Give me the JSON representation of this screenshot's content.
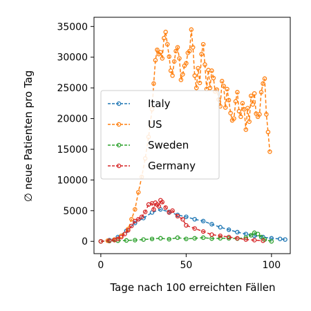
{
  "chart_data": {
    "type": "line",
    "title": "",
    "xlabel": "Tage nach 100 erreichten Fällen",
    "ylabel": "∅ neue Patienten pro Tag",
    "xlim": [
      -4,
      111
    ],
    "ylim": [
      -2000,
      36500
    ],
    "xticks": [
      0,
      50,
      100
    ],
    "yticks": [
      0,
      5000,
      10000,
      15000,
      20000,
      25000,
      30000,
      35000
    ],
    "grid": false,
    "legend_position": "center-left",
    "marker": "open-circle",
    "linestyle": "dashed",
    "series": [
      {
        "name": "Italy",
        "color": "#1f77b4",
        "x": [
          0,
          5,
          10,
          15,
          20,
          25,
          30,
          35,
          40,
          45,
          50,
          55,
          60,
          65,
          70,
          75,
          80,
          85,
          90,
          95,
          100,
          105,
          108
        ],
        "y": [
          0,
          200,
          700,
          1700,
          3000,
          3800,
          4700,
          5200,
          4800,
          4300,
          4000,
          3600,
          3300,
          2800,
          2300,
          1900,
          1500,
          1200,
          900,
          700,
          500,
          400,
          300
        ]
      },
      {
        "name": "US",
        "color": "#ff7f0e",
        "x": [
          0,
          4,
          8,
          12,
          16,
          18,
          20,
          22,
          24,
          26,
          28,
          30,
          31,
          32,
          33,
          34,
          35,
          36,
          37,
          38,
          39,
          40,
          41,
          42,
          43,
          44,
          45,
          46,
          47,
          48,
          49,
          50,
          51,
          52,
          53,
          54,
          55,
          56,
          57,
          58,
          59,
          60,
          61,
          62,
          63,
          64,
          65,
          66,
          67,
          68,
          69,
          70,
          71,
          72,
          73,
          74,
          75,
          76,
          77,
          78,
          79,
          80,
          81,
          82,
          83,
          84,
          85,
          86,
          87,
          88,
          89,
          90,
          91,
          92,
          93,
          94,
          95,
          96,
          97,
          98,
          99,
          100
        ],
        "y": [
          0,
          100,
          300,
          900,
          2000,
          3600,
          5200,
          8000,
          10500,
          13500,
          17000,
          21500,
          25700,
          29500,
          31200,
          30500,
          30800,
          29800,
          33100,
          34100,
          32100,
          30100,
          27800,
          27000,
          29300,
          31000,
          31600,
          29800,
          26300,
          27200,
          28600,
          29000,
          30700,
          31000,
          34500,
          31600,
          27000,
          25000,
          28200,
          25800,
          30500,
          32100,
          28800,
          24800,
          27900,
          25000,
          27800,
          26600,
          24400,
          24700,
          23100,
          22000,
          26100,
          25300,
          21800,
          24800,
          23000,
          20900,
          19700,
          20000,
          22800,
          24300,
          21200,
          20300,
          22500,
          21500,
          18200,
          21700,
          19500,
          23700,
          22300,
          24100,
          20800,
          20300,
          20700,
          24300,
          25700,
          26500,
          20700,
          17800,
          14600,
          null
        ]
      },
      {
        "name": "Sweden",
        "color": "#2ca02c",
        "x": [
          0,
          5,
          10,
          15,
          20,
          25,
          30,
          35,
          40,
          45,
          50,
          55,
          60,
          65,
          70,
          75,
          80,
          85,
          88,
          90,
          92,
          94,
          96,
          100
        ],
        "y": [
          0,
          50,
          100,
          150,
          200,
          300,
          400,
          500,
          350,
          600,
          400,
          500,
          600,
          450,
          500,
          500,
          450,
          600,
          1000,
          1400,
          1200,
          700,
          300,
          0
        ]
      },
      {
        "name": "Germany",
        "color": "#d62728",
        "x": [
          0,
          5,
          8,
          10,
          12,
          14,
          16,
          18,
          20,
          22,
          24,
          26,
          28,
          30,
          31,
          32,
          33,
          34,
          35,
          36,
          38,
          40,
          42,
          45,
          48,
          50,
          55,
          60,
          65,
          70,
          75,
          80,
          85,
          90,
          95
        ],
        "y": [
          0,
          100,
          200,
          400,
          700,
          1200,
          1800,
          2500,
          3300,
          3600,
          4000,
          4800,
          6000,
          6200,
          5200,
          6300,
          6000,
          5700,
          6700,
          6400,
          5500,
          4700,
          5000,
          4100,
          3600,
          2600,
          2100,
          1600,
          1100,
          900,
          700,
          500,
          300,
          200,
          100
        ]
      }
    ]
  }
}
